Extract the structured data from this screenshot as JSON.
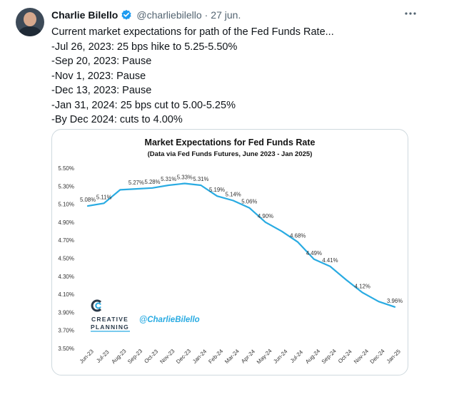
{
  "tweet": {
    "author_name": "Charlie Bilello",
    "handle": "@charliebilello",
    "separator": "·",
    "date": "27 jun.",
    "more_icon": "more-horizontal-icon",
    "verified_color": "#1d9bf0",
    "lines": [
      "Current market expectations for path of the Fed Funds Rate...",
      "-Jul 26, 2023: 25 bps hike to 5.25-5.50%",
      "-Sep 20, 2023: Pause",
      "-Nov 1, 2023: Pause",
      "-Dec 13, 2023: Pause",
      "-Jan 31, 2024: 25 bps cut to 5.00-5.25%",
      "-By Dec 2024: cuts to 4.00%"
    ]
  },
  "chart_data": {
    "type": "line",
    "title": "Market Expectations for Fed Funds Rate",
    "subtitle": "(Data via Fed Funds Futures, June 2023 - Jan 2025)",
    "categories": [
      "Jun-23",
      "Jul-23",
      "Aug-23",
      "Sep-23",
      "Oct-23",
      "Nov-23",
      "Dec-23",
      "Jan-24",
      "Feb-24",
      "Mar-24",
      "Apr-24",
      "May-24",
      "Jun-24",
      "Jul-24",
      "Aug-24",
      "Sep-24",
      "Oct-24",
      "Nov-24",
      "Dec-24",
      "Jan-25"
    ],
    "series": [
      {
        "values": [
          5.08,
          5.11,
          5.26,
          5.27,
          5.28,
          5.31,
          5.33,
          5.31,
          5.19,
          5.14,
          5.06,
          4.9,
          4.8,
          4.68,
          4.49,
          4.41,
          4.26,
          4.12,
          4.02,
          3.96
        ],
        "labels": [
          "5.08%",
          "5.11%",
          "",
          "5.27%",
          "5.28%",
          "5.31%",
          "5.33%",
          "5.31%",
          "5.19%",
          "5.14%",
          "5.06%",
          "4.90%",
          "",
          "4.68%",
          "4.49%",
          "4.41%",
          "",
          "4.12%",
          "",
          "3.96%"
        ],
        "color": "#29abe2"
      }
    ],
    "yticks": [
      "5.50%",
      "5.30%",
      "5.10%",
      "4.90%",
      "4.70%",
      "4.50%",
      "4.30%",
      "4.10%",
      "3.90%",
      "3.70%",
      "3.50%"
    ],
    "ylim": [
      3.5,
      5.5
    ],
    "grid": false,
    "legend": "none",
    "watermark": {
      "brand_line1": "CREATIVE",
      "brand_line2": "PLANNING",
      "handle": "@CharlieBilello",
      "handle_color": "#29abe2",
      "brand_color": "#2a3a4a"
    }
  }
}
